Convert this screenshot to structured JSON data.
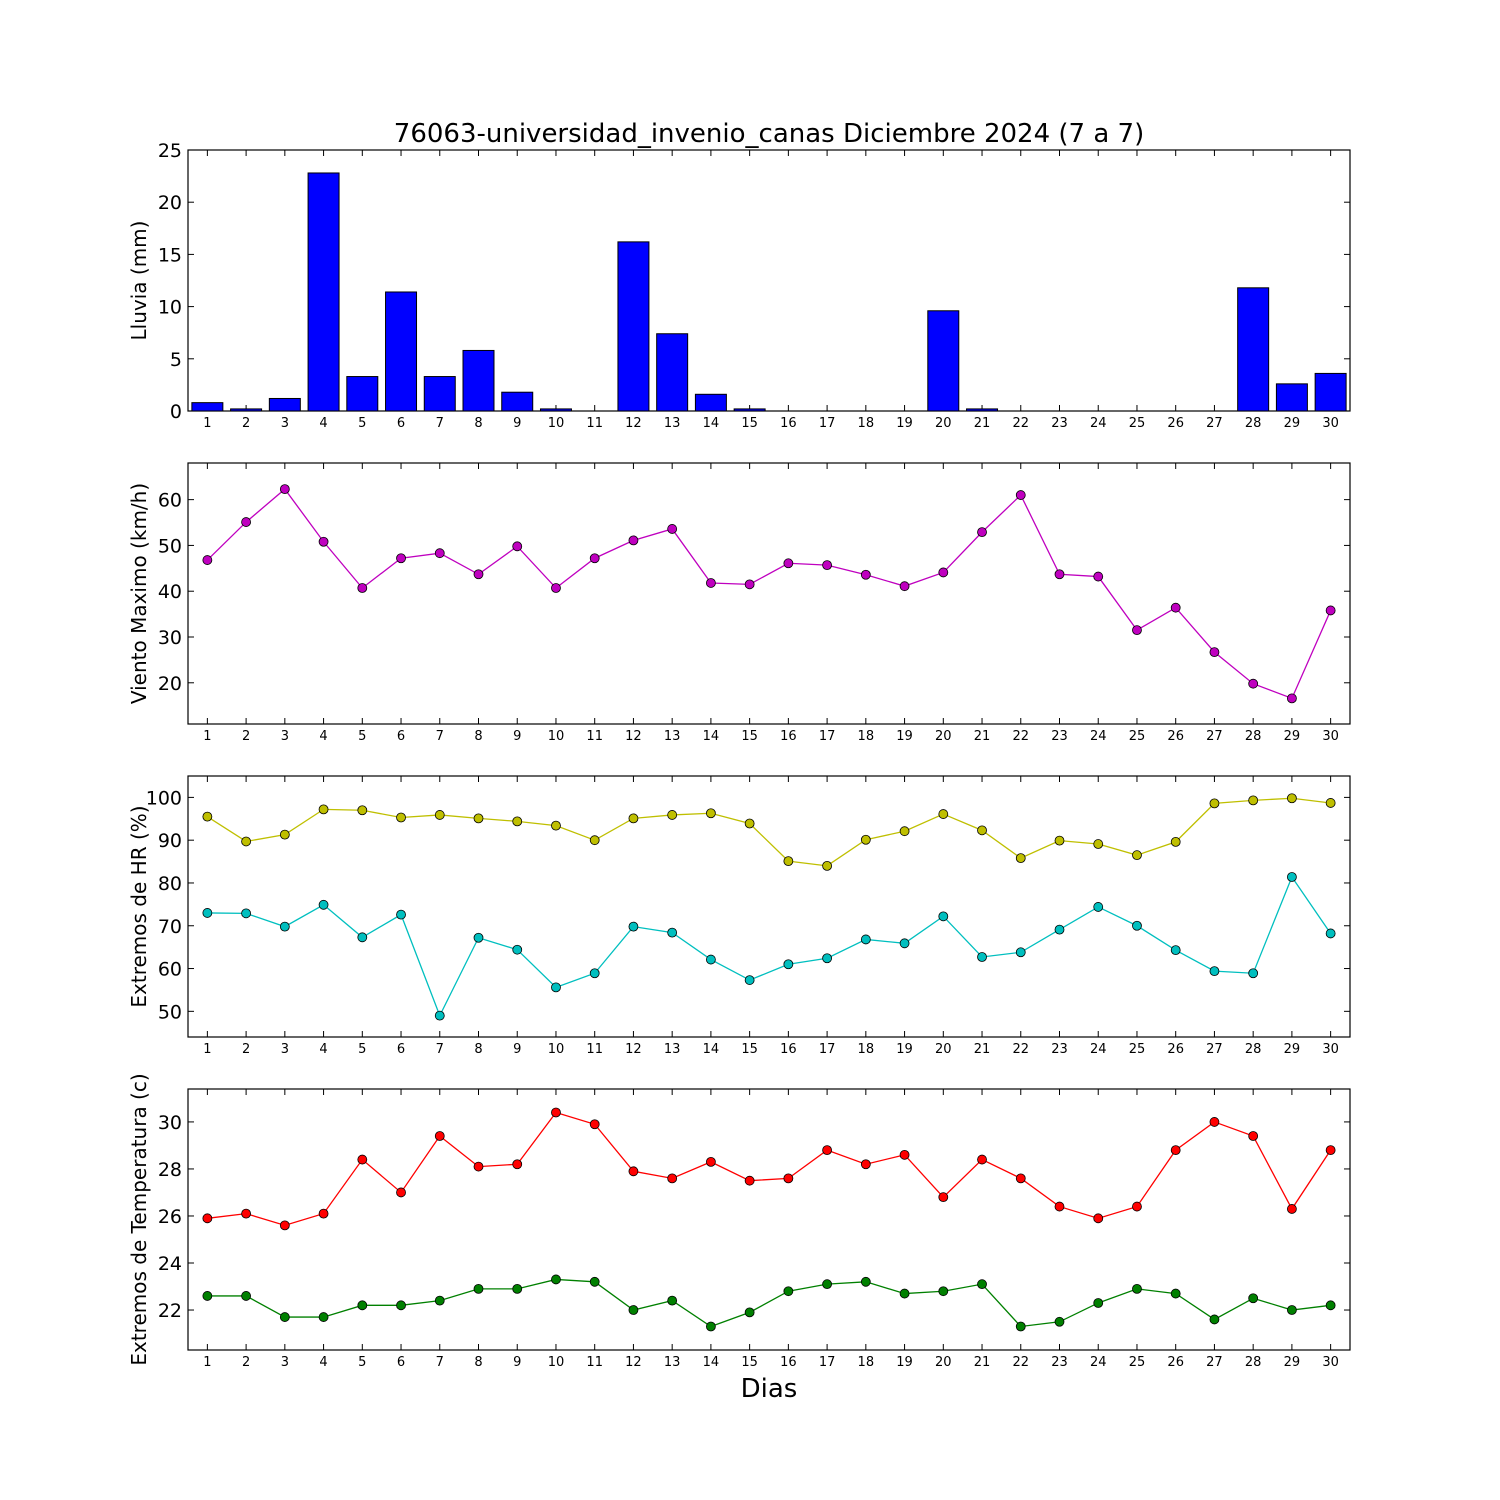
{
  "title": "76063-universidad_invenio_canas Diciembre 2024  (7 a 7)",
  "xlabel": "Dias",
  "chart_data": [
    {
      "type": "bar",
      "ylabel": "Lluvia (mm)",
      "ylim": [
        0,
        25
      ],
      "yticks": [
        0,
        5,
        10,
        15,
        20,
        25
      ],
      "x": [
        1,
        2,
        3,
        4,
        5,
        6,
        7,
        8,
        9,
        10,
        11,
        12,
        13,
        14,
        15,
        16,
        17,
        18,
        19,
        20,
        21,
        22,
        23,
        24,
        25,
        26,
        27,
        28,
        29,
        30
      ],
      "color": "#0000ff",
      "values": [
        0.8,
        0.2,
        1.2,
        22.8,
        3.3,
        11.4,
        3.3,
        5.8,
        1.8,
        0.2,
        0,
        16.2,
        7.4,
        1.6,
        0.2,
        0,
        0,
        0,
        0,
        9.6,
        0.2,
        0,
        0,
        0,
        0,
        0,
        0,
        11.8,
        2.6,
        3.6
      ]
    },
    {
      "type": "line",
      "ylabel": "Viento Maximo (km/h)",
      "ylim": [
        11,
        68
      ],
      "yticks": [
        20,
        30,
        40,
        50,
        60
      ],
      "x": [
        1,
        2,
        3,
        4,
        5,
        6,
        7,
        8,
        9,
        10,
        11,
        12,
        13,
        14,
        15,
        16,
        17,
        18,
        19,
        20,
        21,
        22,
        23,
        24,
        25,
        26,
        27,
        28,
        29,
        30
      ],
      "series": [
        {
          "color": "#bf00bf",
          "values": [
            46.8,
            55.1,
            62.3,
            50.8,
            40.7,
            47.2,
            48.3,
            43.7,
            49.8,
            40.7,
            47.2,
            51.1,
            53.6,
            41.8,
            41.5,
            46.1,
            45.7,
            43.6,
            41.1,
            44.1,
            52.9,
            61.0,
            43.7,
            43.2,
            31.5,
            36.4,
            26.7,
            19.8,
            16.6,
            35.8
          ]
        }
      ]
    },
    {
      "type": "line",
      "ylabel": "Extremos de HR (%)",
      "ylim": [
        44,
        105
      ],
      "yticks": [
        50,
        60,
        70,
        80,
        90,
        100
      ],
      "x": [
        1,
        2,
        3,
        4,
        5,
        6,
        7,
        8,
        9,
        10,
        11,
        12,
        13,
        14,
        15,
        16,
        17,
        18,
        19,
        20,
        21,
        22,
        23,
        24,
        25,
        26,
        27,
        28,
        29,
        30
      ],
      "series": [
        {
          "color": "#bfbf00",
          "values": [
            95.5,
            89.7,
            91.3,
            97.2,
            97.0,
            95.3,
            95.9,
            95.1,
            94.4,
            93.4,
            90.0,
            95.1,
            95.9,
            96.3,
            93.9,
            85.1,
            84.0,
            90.1,
            92.1,
            96.1,
            92.3,
            85.8,
            89.9,
            89.1,
            86.5,
            89.6,
            98.6,
            99.3,
            99.8,
            98.7
          ]
        },
        {
          "color": "#00bfbf",
          "values": [
            73.0,
            72.9,
            69.8,
            74.9,
            67.3,
            72.6,
            49.0,
            67.2,
            64.4,
            55.6,
            58.9,
            69.8,
            68.4,
            62.1,
            57.3,
            61.0,
            62.4,
            66.8,
            65.9,
            72.2,
            62.7,
            63.8,
            69.1,
            74.4,
            70.0,
            64.3,
            59.4,
            58.9,
            81.4,
            68.2
          ]
        }
      ]
    },
    {
      "type": "line",
      "ylabel": "Extremos de Temperatura (c)",
      "ylim": [
        20.3,
        31.4
      ],
      "yticks": [
        22,
        24,
        26,
        28,
        30
      ],
      "x": [
        1,
        2,
        3,
        4,
        5,
        6,
        7,
        8,
        9,
        10,
        11,
        12,
        13,
        14,
        15,
        16,
        17,
        18,
        19,
        20,
        21,
        22,
        23,
        24,
        25,
        26,
        27,
        28,
        29,
        30
      ],
      "series": [
        {
          "color": "#ff0000",
          "values": [
            25.9,
            26.1,
            25.6,
            26.1,
            28.4,
            27.0,
            29.4,
            28.1,
            28.2,
            30.4,
            29.9,
            27.9,
            27.6,
            28.3,
            27.5,
            27.6,
            28.8,
            28.2,
            28.6,
            26.8,
            28.4,
            27.6,
            26.4,
            25.9,
            26.4,
            28.8,
            30.0,
            29.4,
            26.3,
            28.8
          ]
        },
        {
          "color": "#008000",
          "values": [
            22.6,
            22.6,
            21.7,
            21.7,
            22.2,
            22.2,
            22.4,
            22.9,
            22.9,
            23.3,
            23.2,
            22.0,
            22.4,
            21.3,
            21.9,
            22.8,
            23.1,
            23.2,
            22.7,
            22.8,
            23.1,
            21.3,
            21.5,
            22.3,
            22.9,
            22.7,
            21.6,
            22.5,
            22.0,
            22.2
          ]
        }
      ]
    }
  ]
}
